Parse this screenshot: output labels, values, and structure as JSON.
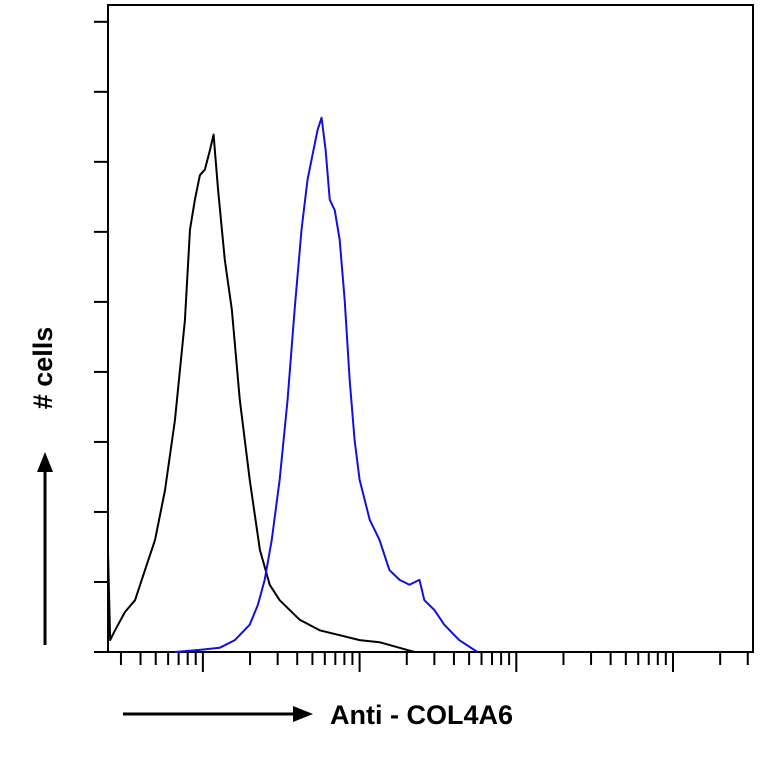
{
  "chart_data": {
    "type": "line",
    "x_label": "Anti - COL4A6",
    "y_label": "# cells",
    "x_log": true,
    "xlim": [
      2.48,
      32400
    ],
    "ylim": [
      0,
      9.24
    ],
    "xticks": [
      3,
      4,
      5,
      6,
      7,
      8,
      9,
      10,
      20,
      30,
      40,
      50,
      60,
      70,
      80,
      90,
      100,
      200,
      300,
      400,
      500,
      600,
      700,
      800,
      900,
      1000,
      2000,
      3000,
      4000,
      5000,
      6000,
      7000,
      8000,
      9000,
      10000,
      20000,
      30000
    ],
    "yticks": [
      0,
      1,
      2,
      3,
      4,
      5,
      6,
      7,
      8,
      9
    ],
    "series": [
      {
        "color": "#000000",
        "x": [
          2.48,
          2.56,
          2.75,
          3.18,
          3.69,
          4.27,
          4.95,
          5.73,
          6.63,
          7.14,
          7.68,
          8.27,
          8.89,
          9.57,
          10.3,
          11.1,
          11.7,
          12.5,
          13.8,
          15.3,
          17.2,
          19.9,
          23.1,
          26.7,
          30.9,
          41.5,
          55.6,
          74.6,
          100,
          134,
          180,
          224
        ],
        "values": [
          1.43,
          0.17,
          0.31,
          0.57,
          0.74,
          1.17,
          1.6,
          2.31,
          3.31,
          4.03,
          4.74,
          6.03,
          6.46,
          6.81,
          6.89,
          7.17,
          7.39,
          6.6,
          5.6,
          4.89,
          3.6,
          2.46,
          1.46,
          0.96,
          0.74,
          0.46,
          0.31,
          0.24,
          0.17,
          0.14,
          0.06,
          0
        ]
      },
      {
        "color": "#1010e0",
        "x": [
          6.63,
          9.57,
          12.8,
          16.0,
          19.9,
          22.4,
          24.8,
          27.5,
          30.9,
          34.7,
          38.5,
          42.6,
          46.5,
          50.8,
          54.0,
          57.2,
          60.7,
          64.5,
          69.4,
          74.6,
          80.3,
          86.4,
          92.9,
          100,
          116,
          134,
          155,
          180,
          208,
          241,
          259,
          300,
          347,
          432,
          565
        ],
        "values": [
          0,
          0.03,
          0.06,
          0.17,
          0.39,
          0.67,
          1.03,
          1.6,
          2.46,
          3.6,
          4.89,
          6.03,
          6.74,
          7.17,
          7.46,
          7.63,
          7.17,
          6.46,
          6.31,
          5.89,
          5.03,
          3.89,
          3.03,
          2.46,
          1.89,
          1.6,
          1.17,
          1.03,
          0.96,
          1.03,
          0.74,
          0.6,
          0.39,
          0.17,
          0
        ]
      }
    ]
  }
}
